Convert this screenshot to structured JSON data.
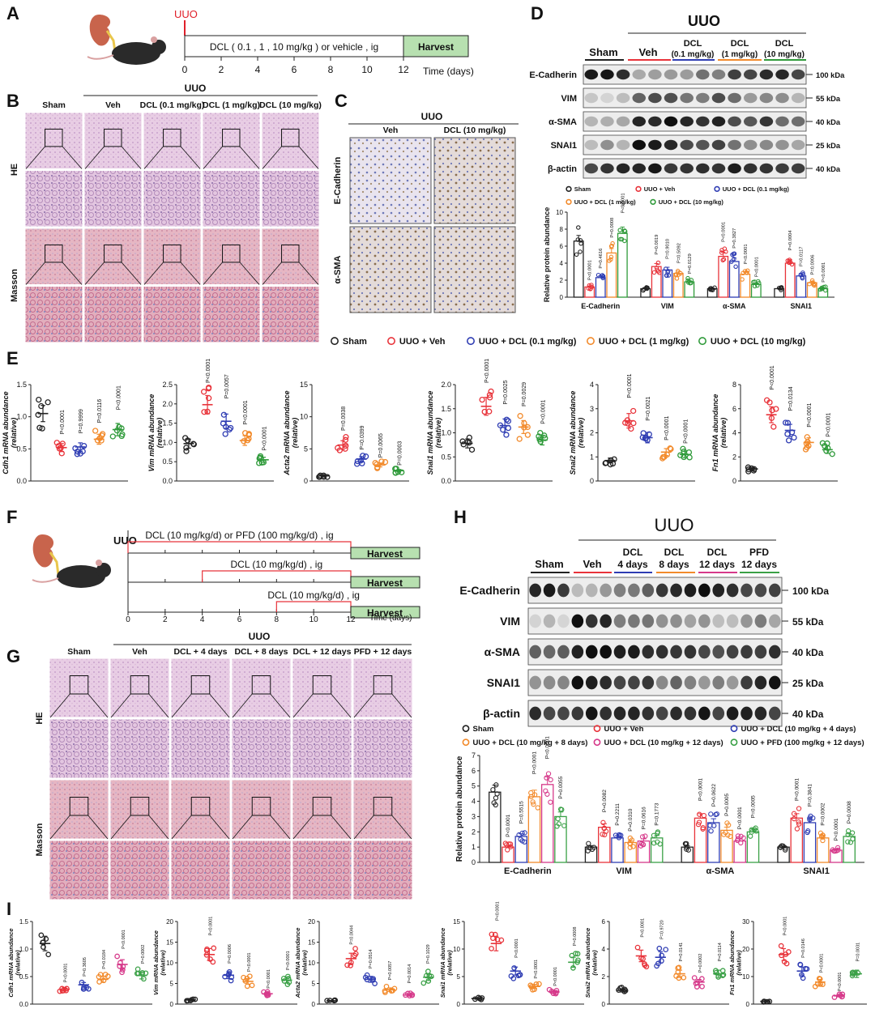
{
  "panel_labels": [
    "A",
    "B",
    "C",
    "D",
    "E",
    "F",
    "G",
    "H",
    "I"
  ],
  "colors": {
    "sham": "#222222",
    "veh": "#e8333a",
    "dcl01": "#2f3db3",
    "dcl1": "#f28a2b",
    "dcl10": "#2f9a3a",
    "d4": "#2f3db3",
    "d8": "#f28a2b",
    "d12": "#d6398a",
    "pfd": "#3aa046",
    "harvest_fill": "#b7e0b0"
  },
  "A": {
    "uuo": "UUO",
    "dosing": "DCL ( 0.1 , 1 , 10 mg/kg ) or vehicle , ig",
    "harvest": "Harvest",
    "ticks": [
      "0",
      "2",
      "4",
      "6",
      "8",
      "10",
      "12"
    ],
    "axis": "Time (days)"
  },
  "B": {
    "uuo": "UUO",
    "groups": [
      "Sham",
      "Veh",
      "DCL (0.1 mg/kg)",
      "DCL (1 mg/kg)",
      "DCL (10 mg/kg)"
    ],
    "rows": [
      "HE",
      "Masson"
    ]
  },
  "C": {
    "uuo": "UUO",
    "groups": [
      "Veh",
      "DCL (10 mg/kg)"
    ],
    "rows": [
      "E-Cadherin",
      "α-SMA"
    ]
  },
  "D": {
    "uuo": "UUO",
    "groups": [
      "Sham",
      "Veh",
      "DCL",
      "(0.1 mg/kg)",
      "DCL",
      "(1 mg/kg)",
      "DCL",
      "(10 mg/kg)"
    ],
    "proteins": [
      "E-Cadherin",
      "VIM",
      "α-SMA",
      "SNAI1",
      "β-actin"
    ],
    "kda": [
      "100 kDa",
      "55 kDa",
      "40 kDa",
      "25 kDa",
      "40 kDa"
    ],
    "legend": [
      "Sham",
      "UUO + Veh",
      "UUO + DCL (0.1 mg/kg)",
      "UUO + DCL (1 mg/kg)",
      "UUO + DCL (10 mg/kg)"
    ]
  },
  "E_legend": [
    "Sham",
    "UUO + Veh",
    "UUO + DCL (0.1 mg/kg)",
    "UUO + DCL (1 mg/kg)",
    "UUO + DCL (10 mg/kg)"
  ],
  "F": {
    "uuo": "UUO",
    "line1": "DCL (10 mg/kg/d) or PFD (100 mg/kg/d) , ig",
    "line2": "DCL (10 mg/kg/d) , ig",
    "line3": "DCL (10 mg/kg/d) , ig",
    "harvest": "Harvest",
    "ticks": [
      "0",
      "2",
      "4",
      "6",
      "8",
      "10",
      "12"
    ],
    "axis": "Time (days)"
  },
  "G": {
    "uuo": "UUO",
    "groups": [
      "Sham",
      "Veh",
      "DCL + 4 days",
      "DCL + 8 days",
      "DCL + 12 days",
      "PFD + 12 days"
    ],
    "rows": [
      "HE",
      "Masson"
    ]
  },
  "H": {
    "uuo": "UUO",
    "groups": [
      "Sham",
      "Veh",
      "DCL",
      "4 days",
      "DCL",
      "8 days",
      "DCL",
      "12 days",
      "PFD",
      "12 days"
    ],
    "proteins": [
      "E-Cadherin",
      "VIM",
      "α-SMA",
      "SNAI1",
      "β-actin"
    ],
    "kda": [
      "100 kDa",
      "55 kDa",
      "40 kDa",
      "25 kDa",
      "40 kDa"
    ],
    "legend": [
      "Sham",
      "UUO + Veh",
      "UUO + DCL (10 mg/kg + 4 days)",
      "UUO + DCL (10 mg/kg + 8 days)",
      "UUO + DCL (10 mg/kg + 12 days)",
      "UUO + PFD (100 mg/kg + 12 days)"
    ]
  },
  "chart_data": [
    {
      "id": "D-bar",
      "type": "bar",
      "ylabel": "Relative protein abundance",
      "ylim": [
        0,
        10
      ],
      "yticks": [
        0,
        2,
        4,
        6,
        8,
        10
      ],
      "categories": [
        "E-Cadherin",
        "VIM",
        "α-SMA",
        "SNAI1"
      ],
      "series": [
        {
          "name": "Sham",
          "values": [
            6.6,
            1.0,
            1.0,
            1.0
          ]
        },
        {
          "name": "UUO + Veh",
          "values": [
            1.2,
            3.6,
            4.8,
            4.0
          ]
        },
        {
          "name": "UUO + DCL (0.1 mg/kg)",
          "values": [
            2.3,
            3.2,
            4.2,
            2.5
          ]
        },
        {
          "name": "UUO + DCL (1 mg/kg)",
          "values": [
            5.2,
            2.8,
            2.7,
            1.7
          ]
        },
        {
          "name": "UUO + DCL (10 mg/kg)",
          "values": [
            7.5,
            1.8,
            1.5,
            1.0
          ]
        }
      ],
      "pvalues": [
        [
          "P<0.0001",
          "P=0.4616",
          "P=0.0008",
          "P<0.0001"
        ],
        [
          "P=0.0019",
          "P=0.9010",
          "P=0.5092",
          "P=0.0129"
        ],
        [
          "P<0.0001",
          "P=0.3827",
          "P<0.0001",
          "P<0.0001"
        ],
        [
          "P=0.0004",
          "P=0.0117",
          "P=0.0006",
          "P<0.0001"
        ]
      ]
    },
    {
      "id": "E1",
      "type": "scatter",
      "ylabel": "Cdh1 mRNA abundance (relative)",
      "ylim": [
        0,
        1.5
      ],
      "yticks": [
        "0.0",
        "0.5",
        "1.0",
        "1.5"
      ],
      "means": [
        1.05,
        0.52,
        0.53,
        0.65,
        0.8
      ],
      "pvalues": [
        "P<0.0001",
        "P=0.9999",
        "P=0.0116",
        "P<0.0001"
      ]
    },
    {
      "id": "E2",
      "type": "scatter",
      "ylabel": "Vim mRNA abundance (relative)",
      "ylim": [
        0,
        2.5
      ],
      "yticks": [
        "0.0",
        "0.5",
        "1.0",
        "1.5",
        "2.0",
        "2.5"
      ],
      "means": [
        0.97,
        1.98,
        1.55,
        1.05,
        0.55
      ],
      "pvalues": [
        "P<0.0001",
        "P=0.0057",
        "P<0.0001",
        "P<0.0001"
      ]
    },
    {
      "id": "E3",
      "type": "scatter",
      "ylabel": "Acta2 mRNA abundance (relative)",
      "ylim": [
        0,
        15
      ],
      "yticks": [
        "0",
        "5",
        "10",
        "15"
      ],
      "means": [
        0.8,
        5.6,
        3.4,
        2.5,
        1.6
      ],
      "pvalues": [
        "P=0.0038",
        "P=0.0399",
        "P=0.0065",
        "P=0.0003"
      ]
    },
    {
      "id": "E4",
      "type": "scatter",
      "ylabel": "Snai1 mRNA abundance (relative)",
      "ylim": [
        0,
        2.0
      ],
      "yticks": [
        "0.0",
        "0.5",
        "1.0",
        "1.5",
        "2.0"
      ],
      "means": [
        0.78,
        1.55,
        1.15,
        1.12,
        0.85
      ],
      "pvalues": [
        "P<0.0001",
        "P=0.0025",
        "P=0.0029",
        "P<0.0001"
      ]
    },
    {
      "id": "E5",
      "type": "scatter",
      "ylabel": "Snai2 mRNA abundance (relative)",
      "ylim": [
        0,
        4
      ],
      "yticks": [
        "0",
        "1",
        "2",
        "3",
        "4"
      ],
      "means": [
        0.85,
        2.5,
        1.8,
        1.2,
        1.1
      ],
      "pvalues": [
        "P<0.0001",
        "P=0.0021",
        "P<0.0001",
        "P<0.0001"
      ]
    },
    {
      "id": "E6",
      "type": "scatter",
      "ylabel": "Fn1 mRNA abundance (relative)",
      "ylim": [
        0,
        8
      ],
      "yticks": [
        "0",
        "2",
        "4",
        "6",
        "8"
      ],
      "means": [
        1.0,
        5.5,
        4.2,
        3.2,
        2.6
      ],
      "pvalues": [
        "P<0.0001",
        "P=0.0134",
        "P<0.0001",
        "P<0.0001"
      ]
    },
    {
      "id": "H-bar",
      "type": "bar",
      "ylabel": "Relative protein abundance",
      "ylim": [
        0,
        7
      ],
      "yticks": [
        0,
        1,
        2,
        3,
        4,
        5,
        6,
        7
      ],
      "categories": [
        "E-Cadherin",
        "VIM",
        "α-SMA",
        "SNAI1"
      ],
      "series": [
        {
          "name": "Sham",
          "values": [
            4.6,
            1.0,
            1.0,
            1.0
          ]
        },
        {
          "name": "UUO + Veh",
          "values": [
            1.0,
            2.3,
            2.9,
            2.9
          ]
        },
        {
          "name": "UUO + DCL (10 mg/kg + 4 days)",
          "values": [
            1.7,
            1.6,
            2.6,
            2.6
          ]
        },
        {
          "name": "UUO + DCL (10 mg/kg + 8 days)",
          "values": [
            4.3,
            1.3,
            2.1,
            1.6
          ]
        },
        {
          "name": "UUO + DCL (10 mg/kg + 12 days)",
          "values": [
            5.1,
            1.4,
            1.4,
            0.8
          ]
        },
        {
          "name": "UUO + PFD (100 mg/kg + 12 days)",
          "values": [
            3.0,
            1.6,
            2.0,
            1.7
          ]
        }
      ],
      "pvalues": [
        [
          "P<0.0001",
          "P=0.5515",
          "P<0.0001",
          "P<0.0001",
          "P=0.0055"
        ],
        [
          "P=0.0082",
          "P=0.2211",
          "P=0.0310",
          "P=0.0616",
          "P=0.1773"
        ],
        [
          "P<0.0001",
          "P=0.0622",
          "P=0.0005",
          "P<0.0001",
          "P=0.0005"
        ],
        [
          "P<0.0001",
          "P=0.3841",
          "P=0.0002",
          "P<0.0001",
          "P=0.0008"
        ]
      ]
    },
    {
      "id": "I1",
      "type": "scatter",
      "ylabel": "Cdh1 mRNA abundance (relative)",
      "ylim": [
        0,
        1.5
      ],
      "yticks": [
        "0.0",
        "0.5",
        "1.0",
        "1.5"
      ],
      "means": [
        1.1,
        0.27,
        0.35,
        0.45,
        0.72,
        0.52
      ],
      "pvalues": [
        "P<0.0001",
        "P=0.3605",
        "P=0.0184",
        "P<0.0001",
        "P=0.0002"
      ]
    },
    {
      "id": "I2",
      "type": "scatter",
      "ylabel": "Vim mRNA abundance (relative)",
      "ylim": [
        0,
        20
      ],
      "yticks": [
        "0",
        "5",
        "10",
        "15",
        "20"
      ],
      "means": [
        1.0,
        12.0,
        7.0,
        5.5,
        2.5,
        5.8
      ],
      "pvalues": [
        "P<0.0001",
        "P=0.0006",
        "P<0.0001",
        "P<0.0001",
        "P<0.0001"
      ]
    },
    {
      "id": "I3",
      "type": "scatter",
      "ylabel": "Acta2 mRNA abundance (relative)",
      "ylim": [
        0,
        20
      ],
      "yticks": [
        "0",
        "5",
        "10",
        "15",
        "20"
      ],
      "means": [
        0.8,
        11.0,
        6.0,
        3.5,
        2.2,
        6.5
      ],
      "pvalues": [
        "P=0.0044",
        "P=0.0514",
        "P=0.0057",
        "P=0.0014",
        "P=0.1029"
      ],
      "pvalue_positions": [
        [
          1.08,
          14.4
        ],
        [
          2.08,
          8.6
        ],
        [
          3.08,
          5.8
        ],
        [
          4.08,
          5.0
        ],
        [
          5.05,
          9.8
        ]
      ]
    },
    {
      "id": "I4",
      "type": "scatter",
      "ylabel": "Snai1 mRNA abundance (relative)",
      "ylim": [
        0,
        15
      ],
      "yticks": [
        "0",
        "5",
        "10",
        "15"
      ],
      "means": [
        1.0,
        11.0,
        6.0,
        3.2,
        2.2,
        7.6
      ],
      "pvalues": [
        "P<0.0001",
        "P<0.0001",
        "P<0.0001",
        "P<0.0001",
        "P=0.0008"
      ]
    },
    {
      "id": "I5",
      "type": "scatter",
      "ylabel": "Snai2 mRNA abundance (relative)",
      "ylim": [
        0,
        6
      ],
      "yticks": [
        "0",
        "2",
        "4",
        "6"
      ],
      "means": [
        1.0,
        3.5,
        3.4,
        2.2,
        1.6,
        2.2
      ],
      "pvalues": [
        "P<0.0001",
        "P=0.9720",
        "P=0.0141",
        "P=0.0002",
        "P=0.0114"
      ]
    },
    {
      "id": "I6",
      "type": "scatter",
      "ylabel": "Fn1 mRNA abundance (relative)",
      "ylim": [
        0,
        30
      ],
      "yticks": [
        "0",
        "10",
        "20",
        "30"
      ],
      "means": [
        1.0,
        18.0,
        12.0,
        8.0,
        3.0,
        11.0
      ],
      "pvalues": [
        "P<0.0001",
        "P=0.0146",
        "P<0.0001",
        "P<0.0001",
        "P=0.0031"
      ]
    }
  ]
}
